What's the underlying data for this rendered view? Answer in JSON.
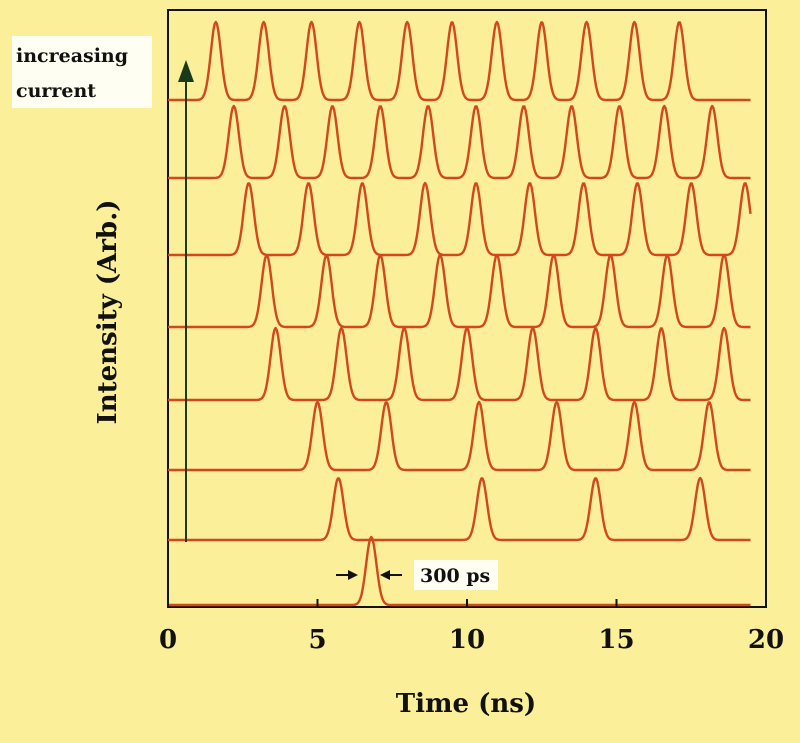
{
  "chart_data": {
    "type": "line",
    "title": "",
    "xlabel": "Time (ns)",
    "ylabel": "Intensity (Arb.)",
    "xlim": [
      0,
      20
    ],
    "x_ticks": [
      "0",
      "5",
      "10",
      "15",
      "20"
    ],
    "grid": false,
    "line_color": "#d2481c",
    "background_color": "#fbef9a",
    "plot_background_color": "#fbef9a",
    "annotations": {
      "arrow_label": "increasing current",
      "arrow_label_lines": [
        "increasing",
        "current"
      ],
      "pulse_width_label": "300 ps"
    },
    "series": [
      {
        "peaks_ns": [
          6.8
        ]
      },
      {
        "peaks_ns": [
          5.7,
          10.5,
          14.3,
          17.8
        ]
      },
      {
        "peaks_ns": [
          5.0,
          7.3,
          10.4,
          13.0,
          15.6,
          18.1
        ]
      },
      {
        "peaks_ns": [
          3.6,
          5.8,
          7.9,
          10.0,
          12.2,
          14.3,
          16.5,
          18.6
        ]
      },
      {
        "peaks_ns": [
          3.3,
          5.3,
          7.1,
          9.1,
          11.0,
          12.9,
          14.8,
          16.7,
          18.6
        ]
      },
      {
        "peaks_ns": [
          2.7,
          4.7,
          6.5,
          8.6,
          10.3,
          12.1,
          13.9,
          15.7,
          17.5,
          19.3
        ]
      },
      {
        "peaks_ns": [
          2.2,
          3.9,
          5.5,
          7.1,
          8.7,
          10.3,
          11.9,
          13.5,
          15.1,
          16.6,
          18.2
        ]
      },
      {
        "peaks_ns": [
          1.6,
          3.2,
          4.8,
          6.4,
          8.0,
          9.5,
          11.0,
          12.5,
          14.0,
          15.6,
          17.1
        ]
      }
    ]
  }
}
